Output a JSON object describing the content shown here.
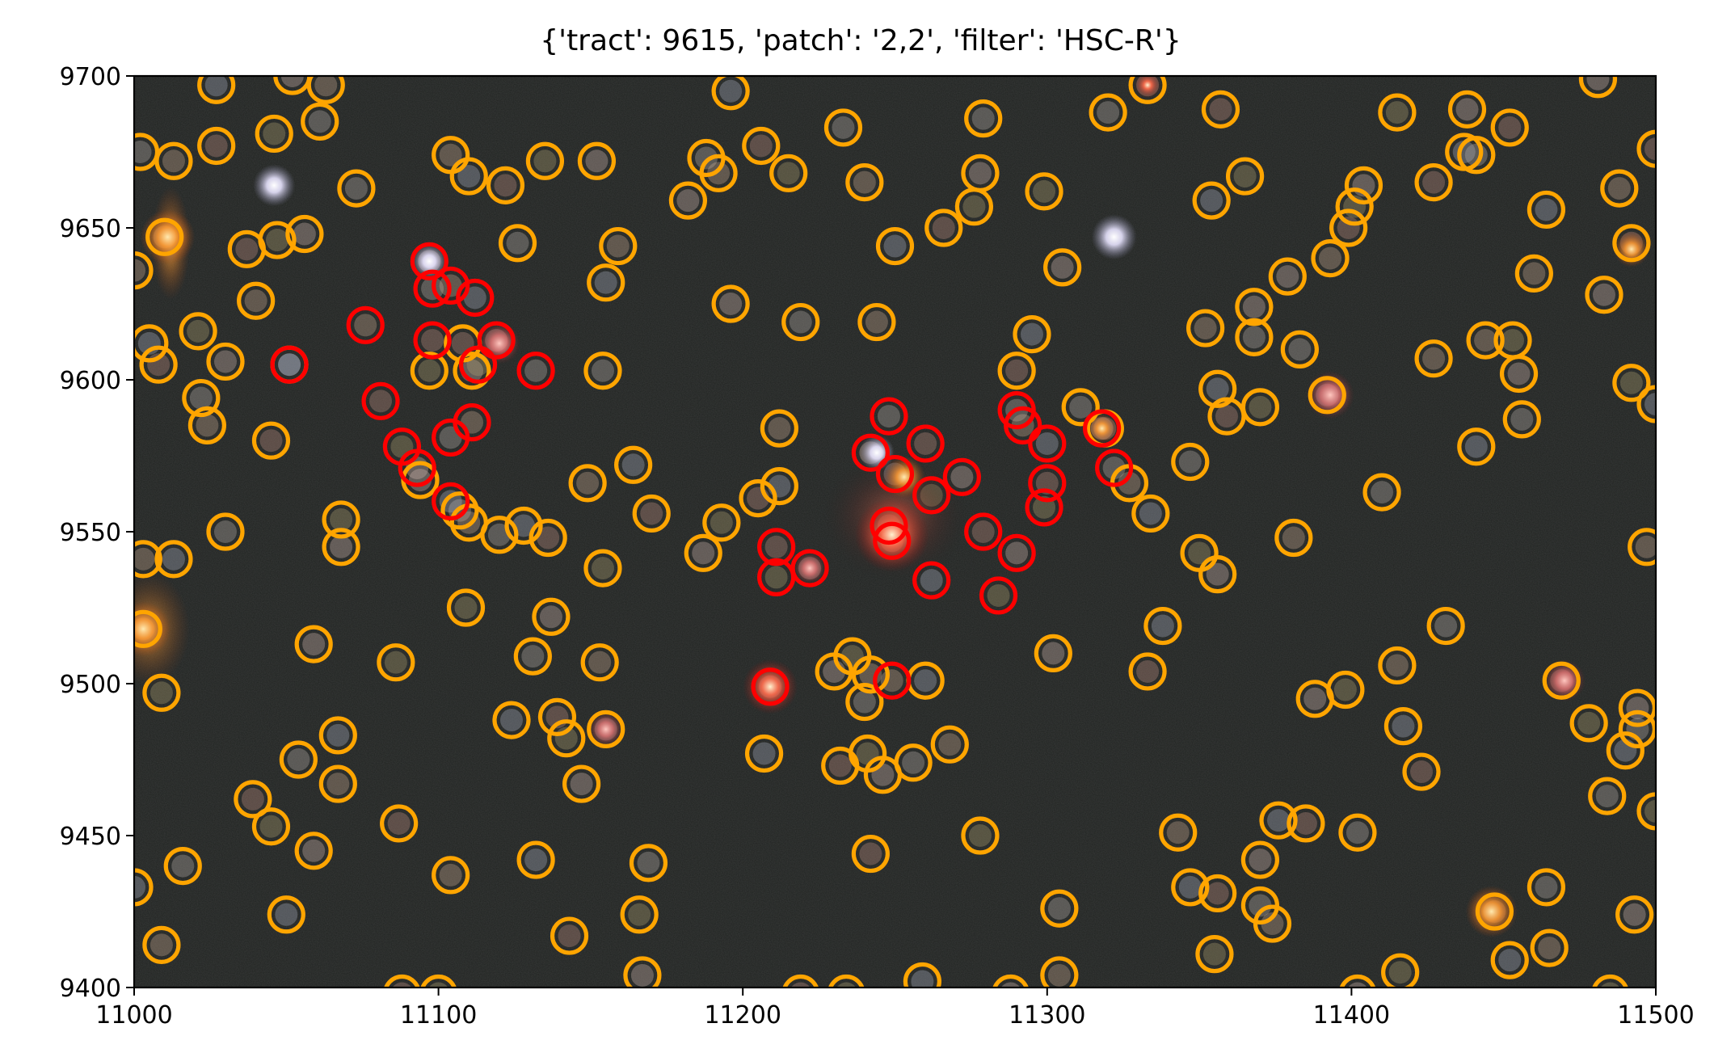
{
  "chart_data": {
    "type": "scatter",
    "title": "{'tract': 9615, 'patch': '2,2', 'filter': 'HSC-R'}",
    "xlim": [
      11000,
      11500
    ],
    "ylim": [
      9400,
      9700
    ],
    "xticks": [
      11000,
      11100,
      11200,
      11300,
      11400,
      11500
    ],
    "yticks": [
      9400,
      9450,
      9500,
      9550,
      9600,
      9650,
      9700
    ],
    "xtick_labels": [
      "11000",
      "11100",
      "11200",
      "11300",
      "11400",
      "11500"
    ],
    "ytick_labels": [
      "9400",
      "9450",
      "9500",
      "9550",
      "9600",
      "9650",
      "9700"
    ],
    "xlabel": "",
    "ylabel": "",
    "grid": false,
    "background": "colour astronomical image (dark sky field with stars and galaxies)",
    "colors": {
      "orange": "#ffa500",
      "red": "#ff0000"
    },
    "series": [
      {
        "color": "orange",
        "marker": "open-circle",
        "points": [
          [
            11002,
            9675
          ],
          [
            11013,
            9672
          ],
          [
            11027,
            9697
          ],
          [
            11027,
            9677
          ],
          [
            11046,
            9681
          ],
          [
            11052,
            9700
          ],
          [
            11061,
            9685
          ],
          [
            11063,
            9697
          ],
          [
            11010,
            9647
          ],
          [
            11037,
            9643
          ],
          [
            11047,
            9646
          ],
          [
            11056,
            9648
          ],
          [
            11073,
            9663
          ],
          [
            11040,
            9626
          ],
          [
            11005,
            9612
          ],
          [
            11008,
            9605
          ],
          [
            11021,
            9616
          ],
          [
            11030,
            9606
          ],
          [
            11022,
            9594
          ],
          [
            11024,
            9585
          ],
          [
            11051,
            9605
          ],
          [
            11045,
            9580
          ],
          [
            11068,
            9554
          ],
          [
            11068,
            9545
          ],
          [
            11030,
            9550
          ],
          [
            11003,
            9541
          ],
          [
            11013,
            9541
          ],
          [
            11003,
            9518
          ],
          [
            11009,
            9497
          ],
          [
            11059,
            9513
          ],
          [
            11054,
            9475
          ],
          [
            11067,
            9467
          ],
          [
            11067,
            9483
          ],
          [
            11039,
            9462
          ],
          [
            11045,
            9453
          ],
          [
            11059,
            9445
          ],
          [
            11016,
            9440
          ],
          [
            11009,
            9414
          ],
          [
            11050,
            9424
          ],
          [
            11087,
            9454
          ],
          [
            11086,
            9507
          ],
          [
            11094,
            9567
          ],
          [
            11107,
            9557
          ],
          [
            11110,
            9553
          ],
          [
            11128,
            9552
          ],
          [
            11136,
            9548
          ],
          [
            11109,
            9525
          ],
          [
            11137,
            9522
          ],
          [
            11131,
            9509
          ],
          [
            11153,
            9507
          ],
          [
            11124,
            9488
          ],
          [
            11139,
            9489
          ],
          [
            11142,
            9482
          ],
          [
            11147,
            9467
          ],
          [
            11155,
            9485
          ],
          [
            11104,
            9437
          ],
          [
            11132,
            9442
          ],
          [
            11143,
            9417
          ],
          [
            11166,
            9424
          ],
          [
            11167,
            9404
          ],
          [
            11169,
            9441
          ],
          [
            11104,
            9674
          ],
          [
            11110,
            9667
          ],
          [
            11122,
            9664
          ],
          [
            11135,
            9672
          ],
          [
            11152,
            9672
          ],
          [
            11126,
            9645
          ],
          [
            11159,
            9644
          ],
          [
            11155,
            9632
          ],
          [
            11108,
            9612
          ],
          [
            11097,
            9603
          ],
          [
            11111,
            9603
          ],
          [
            11154,
            9603
          ],
          [
            11149,
            9566
          ],
          [
            11164,
            9572
          ],
          [
            11170,
            9556
          ],
          [
            11154,
            9538
          ],
          [
            11182,
            9659
          ],
          [
            11188,
            9673
          ],
          [
            11192,
            9668
          ],
          [
            11196,
            9695
          ],
          [
            11206,
            9677
          ],
          [
            11215,
            9668
          ],
          [
            11196,
            9625
          ],
          [
            11219,
            9619
          ],
          [
            11212,
            9584
          ],
          [
            11212,
            9565
          ],
          [
            11205,
            9561
          ],
          [
            11193,
            9553
          ],
          [
            11187,
            9543
          ],
          [
            11233,
            9683
          ],
          [
            11240,
            9665
          ],
          [
            11250,
            9644
          ],
          [
            11266,
            9650
          ],
          [
            11276,
            9657
          ],
          [
            11278,
            9668
          ],
          [
            11279,
            9686
          ],
          [
            11244,
            9619
          ],
          [
            11295,
            9615
          ],
          [
            11290,
            9603
          ],
          [
            11299,
            9662
          ],
          [
            11305,
            9637
          ],
          [
            11311,
            9591
          ],
          [
            11327,
            9566
          ],
          [
            11334,
            9556
          ],
          [
            11319,
            9584
          ],
          [
            11236,
            9509
          ],
          [
            11230,
            9504
          ],
          [
            11240,
            9494
          ],
          [
            11242,
            9503
          ],
          [
            11260,
            9501
          ],
          [
            11232,
            9473
          ],
          [
            11241,
            9477
          ],
          [
            11246,
            9470
          ],
          [
            11256,
            9474
          ],
          [
            11268,
            9480
          ],
          [
            11207,
            9477
          ],
          [
            11242,
            9444
          ],
          [
            11278,
            9450
          ],
          [
            11302,
            9510
          ],
          [
            11304,
            9426
          ],
          [
            11304,
            9404
          ],
          [
            11259,
            9402
          ],
          [
            11219,
            9398
          ],
          [
            11234,
            9398
          ],
          [
            11288,
            9398
          ],
          [
            11320,
            9688
          ],
          [
            11333,
            9697
          ],
          [
            11338,
            9519
          ],
          [
            11333,
            9504
          ],
          [
            11350,
            9543
          ],
          [
            11356,
            9536
          ],
          [
            11347,
            9573
          ],
          [
            11343,
            9451
          ],
          [
            11347,
            9433
          ],
          [
            11356,
            9431
          ],
          [
            11355,
            9411
          ],
          [
            11370,
            9442
          ],
          [
            11370,
            9427
          ],
          [
            11374,
            9421
          ],
          [
            11376,
            9455
          ],
          [
            11385,
            9454
          ],
          [
            11398,
            9498
          ],
          [
            11388,
            9495
          ],
          [
            11402,
            9451
          ],
          [
            11381,
            9548
          ],
          [
            11354,
            9659
          ],
          [
            11357,
            9689
          ],
          [
            11365,
            9667
          ],
          [
            11368,
            9624
          ],
          [
            11368,
            9614
          ],
          [
            11352,
            9617
          ],
          [
            11356,
            9597
          ],
          [
            11359,
            9588
          ],
          [
            11370,
            9591
          ],
          [
            11379,
            9634
          ],
          [
            11383,
            9610
          ],
          [
            11393,
            9640
          ],
          [
            11392,
            9595
          ],
          [
            11399,
            9650
          ],
          [
            11401,
            9657
          ],
          [
            11404,
            9664
          ],
          [
            11410,
            9563
          ],
          [
            11415,
            9506
          ],
          [
            11417,
            9486
          ],
          [
            11423,
            9471
          ],
          [
            11416,
            9405
          ],
          [
            11402,
            9398
          ],
          [
            11431,
            9519
          ],
          [
            11427,
            9607
          ],
          [
            11437,
            9675
          ],
          [
            11427,
            9665
          ],
          [
            11415,
            9688
          ],
          [
            11438,
            9689
          ],
          [
            11441,
            9674
          ],
          [
            11444,
            9613
          ],
          [
            11441,
            9578
          ],
          [
            11452,
            9683
          ],
          [
            11453,
            9613
          ],
          [
            11455,
            9602
          ],
          [
            11456,
            9587
          ],
          [
            11460,
            9635
          ],
          [
            11464,
            9656
          ],
          [
            11469,
            9501
          ],
          [
            11478,
            9487
          ],
          [
            11483,
            9628
          ],
          [
            11484,
            9463
          ],
          [
            11488,
            9663
          ],
          [
            11490,
            9478
          ],
          [
            11492,
            9645
          ],
          [
            11492,
            9599
          ],
          [
            11494,
            9492
          ],
          [
            11494,
            9485
          ],
          [
            11497,
            9545
          ],
          [
            11500,
            9592
          ],
          [
            11500,
            9676
          ],
          [
            11500,
            9458
          ],
          [
            11493,
            9424
          ],
          [
            11464,
            9433
          ],
          [
            11465,
            9413
          ],
          [
            11452,
            9409
          ],
          [
            11447,
            9425
          ],
          [
            11485,
            9398
          ],
          [
            11481,
            9699
          ],
          [
            11120,
            9549
          ],
          [
            11000,
            9636
          ],
          [
            11000,
            9433
          ],
          [
            11088,
            9398
          ],
          [
            11100,
            9398
          ]
        ]
      },
      {
        "color": "red",
        "marker": "open-circle",
        "points": [
          [
            11097,
            9639
          ],
          [
            11098,
            9630
          ],
          [
            11104,
            9631
          ],
          [
            11112,
            9627
          ],
          [
            11098,
            9613
          ],
          [
            11113,
            9605
          ],
          [
            11119,
            9613
          ],
          [
            11132,
            9603
          ],
          [
            11076,
            9618
          ],
          [
            11051,
            9605
          ],
          [
            11081,
            9593
          ],
          [
            11088,
            9578
          ],
          [
            11093,
            9571
          ],
          [
            11104,
            9581
          ],
          [
            11111,
            9586
          ],
          [
            11104,
            9560
          ],
          [
            11211,
            9545
          ],
          [
            11211,
            9535
          ],
          [
            11222,
            9538
          ],
          [
            11248,
            9588
          ],
          [
            11242,
            9576
          ],
          [
            11250,
            9569
          ],
          [
            11260,
            9579
          ],
          [
            11262,
            9562
          ],
          [
            11272,
            9568
          ],
          [
            11248,
            9552
          ],
          [
            11249,
            9547
          ],
          [
            11262,
            9534
          ],
          [
            11279,
            9550
          ],
          [
            11284,
            9529
          ],
          [
            11290,
            9543
          ],
          [
            11290,
            9590
          ],
          [
            11292,
            9585
          ],
          [
            11300,
            9579
          ],
          [
            11300,
            9566
          ],
          [
            11299,
            9558
          ],
          [
            11318,
            9584
          ],
          [
            11322,
            9571
          ],
          [
            11249,
            9501
          ],
          [
            11209,
            9499
          ]
        ]
      }
    ]
  }
}
